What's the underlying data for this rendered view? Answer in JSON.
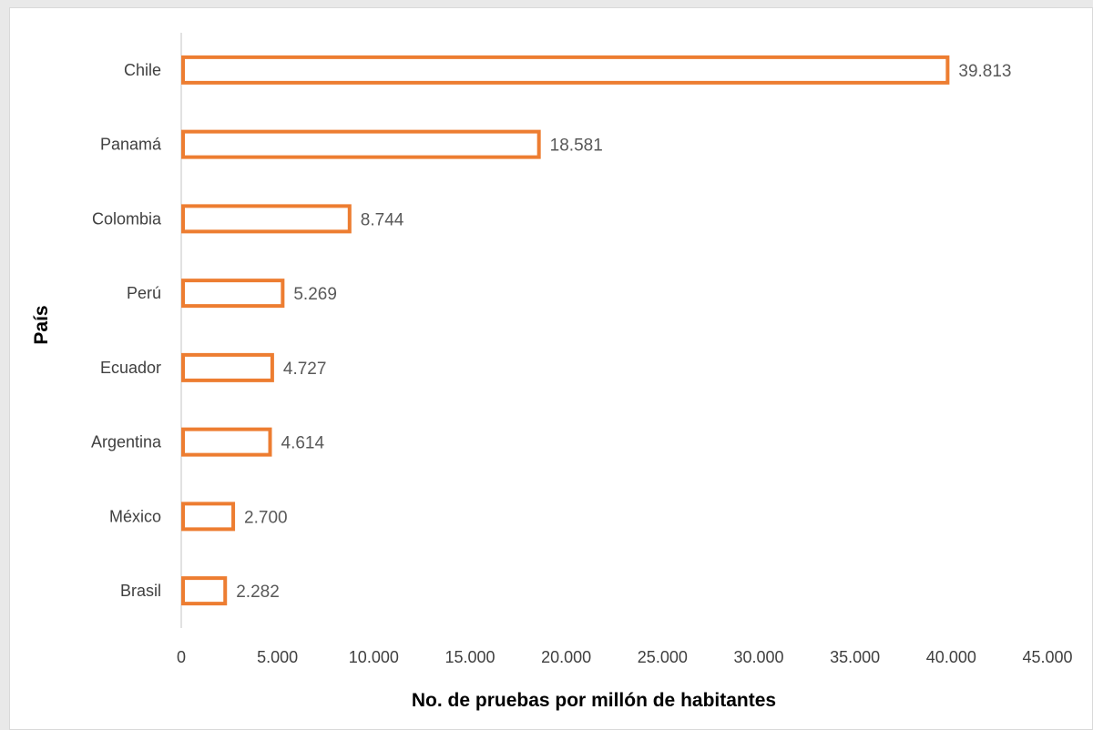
{
  "chart_data": {
    "type": "bar",
    "orientation": "horizontal",
    "categories": [
      "Chile",
      "Panamá",
      "Colombia",
      "Perú",
      "Ecuador",
      "Argentina",
      "México",
      "Brasil"
    ],
    "values": [
      39813,
      18581,
      8744,
      5269,
      4727,
      4614,
      2700,
      2282
    ],
    "value_labels": [
      "39.813",
      "18.581",
      "8.744",
      "5.269",
      "4.727",
      "4.614",
      "2.700",
      "2.282"
    ],
    "xlabel": "No. de pruebas por millón de habitantes",
    "ylabel": "País",
    "xlim": [
      0,
      45000
    ],
    "x_ticks": [
      0,
      5000,
      10000,
      15000,
      20000,
      25000,
      30000,
      35000,
      40000,
      45000
    ],
    "x_tick_labels": [
      "0",
      "5.000",
      "10.000",
      "15.000",
      "20.000",
      "25.000",
      "30.000",
      "35.000",
      "40.000",
      "45.000"
    ],
    "grid": false,
    "legend": "none",
    "bar_style": "outline",
    "bar_color": "#ED7D31"
  }
}
